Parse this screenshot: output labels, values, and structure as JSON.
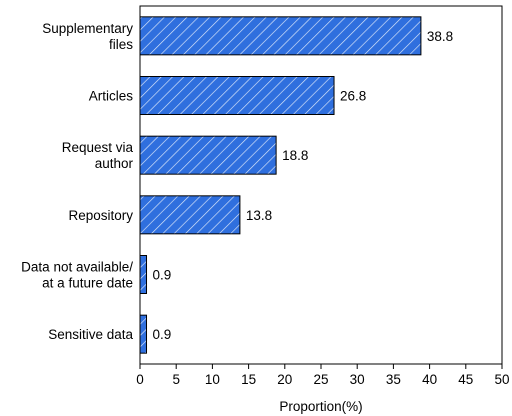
{
  "chart_data": {
    "type": "bar",
    "orientation": "horizontal",
    "categories": [
      [
        "Supplementary",
        "files"
      ],
      [
        "Articles"
      ],
      [
        "Request via",
        "author"
      ],
      [
        "Repository"
      ],
      [
        "Data not available/",
        "at a future date"
      ],
      [
        "Sensitive data"
      ]
    ],
    "values": [
      38.8,
      26.8,
      18.8,
      13.8,
      0.9,
      0.9
    ],
    "value_labels": [
      "38.8",
      "26.8",
      "18.8",
      "13.8",
      "0.9",
      "0.9"
    ],
    "xlabel": "Proportion(%)",
    "xlim": [
      0,
      50
    ],
    "xticks": [
      0,
      5,
      10,
      15,
      20,
      25,
      30,
      35,
      40,
      45,
      50
    ],
    "xtick_labels": [
      "0",
      "5",
      "10",
      "15",
      "20",
      "25",
      "30",
      "35",
      "40",
      "45",
      "50"
    ],
    "grid": false,
    "bar_color": "#2f6fde",
    "bar_hatch_color": "#ffffff",
    "bar_hatch": "diagonal"
  }
}
